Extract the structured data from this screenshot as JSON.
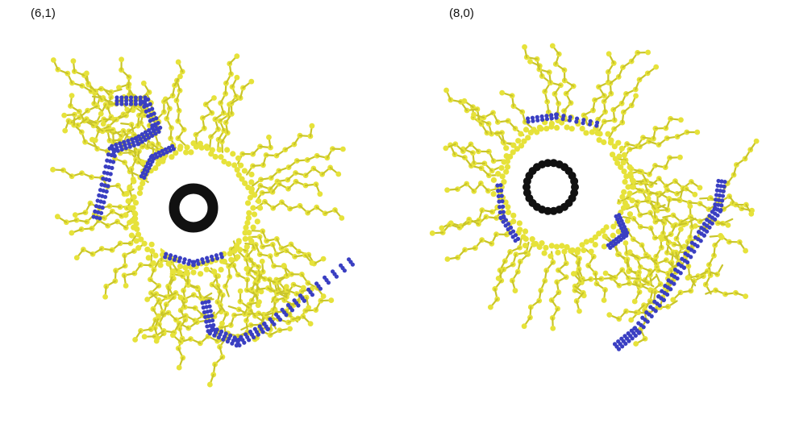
{
  "panels": [
    {
      "label": "(6,1)"
    },
    {
      "label": "(8,0)"
    }
  ],
  "colors": {
    "background": "#ffffff",
    "alkyl_chain": "#e6e23a",
    "alkyl_chain_edge": "#c9c52a",
    "aromatic_core": "#3a3fc2",
    "nanotube": "#111111"
  }
}
